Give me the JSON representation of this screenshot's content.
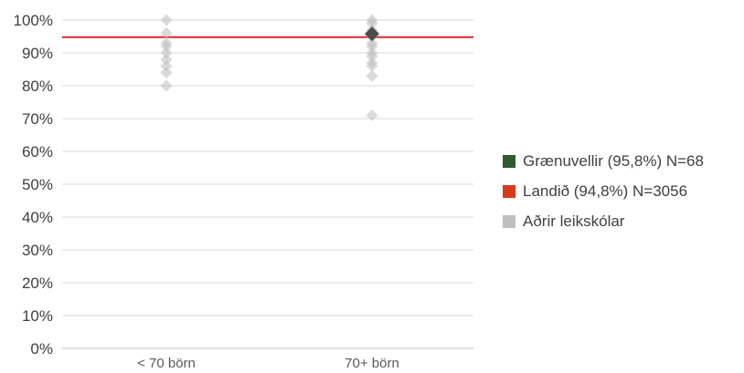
{
  "chart_data": {
    "type": "scatter",
    "title": "",
    "xlabel": "",
    "ylabel": "",
    "categories": [
      "< 70 börn",
      "70+ börn"
    ],
    "ylim": [
      0,
      100
    ],
    "y_ticks": [
      0,
      10,
      20,
      30,
      40,
      50,
      60,
      70,
      80,
      90,
      100
    ],
    "y_tick_labels": [
      "0%",
      "10%",
      "20%",
      "30%",
      "40%",
      "50%",
      "60%",
      "70%",
      "80%",
      "90%",
      "100%"
    ],
    "grid": true,
    "legend_position": "right",
    "reference_line": {
      "name": "Landið (94,8%) N=3056",
      "value": 94.8,
      "color": "#d9262c"
    },
    "series": [
      {
        "name": "Aðrir leikskólar",
        "color": "#bdbdbd",
        "marker": "diamond",
        "points": [
          {
            "x": "< 70 börn",
            "y": 100
          },
          {
            "x": "< 70 börn",
            "y": 96
          },
          {
            "x": "< 70 börn",
            "y": 93
          },
          {
            "x": "< 70 börn",
            "y": 92
          },
          {
            "x": "< 70 börn",
            "y": 90
          },
          {
            "x": "< 70 börn",
            "y": 88
          },
          {
            "x": "< 70 börn",
            "y": 86
          },
          {
            "x": "< 70 börn",
            "y": 84
          },
          {
            "x": "< 70 börn",
            "y": 80
          },
          {
            "x": "70+ börn",
            "y": 100
          },
          {
            "x": "70+ börn",
            "y": 99
          },
          {
            "x": "70+ börn",
            "y": 97
          },
          {
            "x": "70+ börn",
            "y": 95
          },
          {
            "x": "70+ börn",
            "y": 93
          },
          {
            "x": "70+ börn",
            "y": 92
          },
          {
            "x": "70+ börn",
            "y": 90
          },
          {
            "x": "70+ börn",
            "y": 89
          },
          {
            "x": "70+ börn",
            "y": 87
          },
          {
            "x": "70+ börn",
            "y": 86
          },
          {
            "x": "70+ börn",
            "y": 83
          },
          {
            "x": "70+ börn",
            "y": 71
          }
        ]
      },
      {
        "name": "Grænuvellir (95,8%) N=68",
        "color": "#4d4d4d",
        "marker": "diamond",
        "points": [
          {
            "x": "70+ börn",
            "y": 95.8
          }
        ]
      }
    ],
    "legend": [
      {
        "label": "Grænuvellir (95,8%) N=68",
        "color": "#2e5a2e"
      },
      {
        "label": "Landið (94,8%) N=3056",
        "color": "#d9391c"
      },
      {
        "label": "Aðrir leikskólar",
        "color": "#bfbfbf"
      }
    ]
  }
}
